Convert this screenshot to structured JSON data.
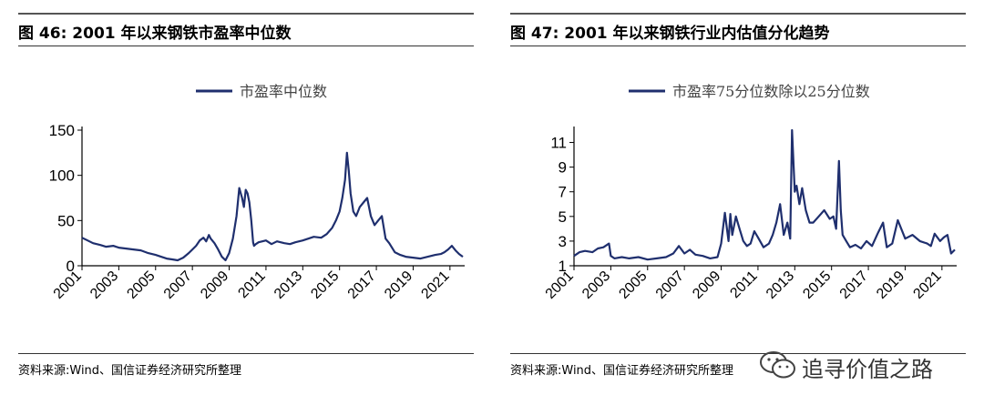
{
  "charts": [
    {
      "figure_title": "图 46:  2001 年以来钢铁市盈率中位数",
      "source": "资料来源:Wind、国信证券经济研究所整理"
    },
    {
      "figure_title": "图 47:  2001 年以来钢铁行业内估值分化趋势",
      "source": "资料来源:Wind、国信证券经济研究所整理"
    }
  ],
  "watermark": {
    "text": "追寻价值之路"
  },
  "colors": {
    "line": "#1f2f6e",
    "axis": "#000000"
  },
  "chart_data": [
    {
      "type": "line",
      "title": "",
      "legend_position": "top-center",
      "grid": false,
      "x_tick_labels": [
        "2001",
        "2003",
        "2005",
        "2007",
        "2009",
        "2011",
        "2013",
        "2015",
        "2017",
        "2019",
        "2021"
      ],
      "xlim": [
        2001,
        2021.8
      ],
      "ylim": [
        0,
        150
      ],
      "y_ticks": [
        0,
        50,
        100,
        150
      ],
      "series": [
        {
          "name": "市盈率中位数",
          "x": [
            2001.0,
            2001.3,
            2001.6,
            2002.0,
            2002.3,
            2002.7,
            2003.0,
            2003.4,
            2003.8,
            2004.2,
            2004.6,
            2005.0,
            2005.3,
            2005.6,
            2005.9,
            2006.2,
            2006.5,
            2006.8,
            2007.0,
            2007.2,
            2007.4,
            2007.6,
            2007.75,
            2007.9,
            2008.0,
            2008.2,
            2008.4,
            2008.6,
            2008.8,
            2009.0,
            2009.2,
            2009.4,
            2009.55,
            2009.7,
            2009.8,
            2009.9,
            2010.0,
            2010.1,
            2010.2,
            2010.3,
            2010.35,
            2010.45,
            2010.6,
            2010.8,
            2011.0,
            2011.3,
            2011.6,
            2012.0,
            2012.3,
            2012.6,
            2013.0,
            2013.3,
            2013.6,
            2014.0,
            2014.3,
            2014.6,
            2014.8,
            2015.0,
            2015.15,
            2015.3,
            2015.4,
            2015.5,
            2015.6,
            2015.75,
            2015.9,
            2016.1,
            2016.3,
            2016.5,
            2016.7,
            2016.9,
            2017.1,
            2017.3,
            2017.5,
            2017.7,
            2018.0,
            2018.3,
            2018.6,
            2019.0,
            2019.4,
            2019.8,
            2020.2,
            2020.5,
            2020.7,
            2020.9,
            2021.1,
            2021.3,
            2021.5,
            2021.7
          ],
          "values": [
            31,
            28,
            25,
            23,
            21,
            22,
            20,
            19,
            18,
            17,
            14,
            12,
            10,
            8,
            7,
            6,
            9,
            14,
            18,
            22,
            28,
            31,
            27,
            34,
            30,
            25,
            18,
            10,
            6,
            14,
            30,
            55,
            86,
            75,
            65,
            84,
            80,
            70,
            50,
            26,
            22,
            24,
            26,
            27,
            28,
            24,
            27,
            25,
            24,
            26,
            28,
            30,
            32,
            31,
            35,
            42,
            50,
            60,
            75,
            95,
            125,
            105,
            80,
            60,
            55,
            65,
            70,
            75,
            55,
            45,
            50,
            55,
            30,
            25,
            15,
            12,
            10,
            9,
            8,
            10,
            12,
            13,
            15,
            18,
            22,
            17,
            13,
            10
          ]
        }
      ]
    },
    {
      "type": "line",
      "title": "",
      "legend_position": "top-center",
      "grid": false,
      "x_tick_labels": [
        "2001",
        "2003",
        "2005",
        "2007",
        "2009",
        "2011",
        "2013",
        "2015",
        "2017",
        "2019",
        "2021"
      ],
      "xlim": [
        2001,
        2021.8
      ],
      "ylim": [
        1,
        12
      ],
      "y_ticks": [
        1,
        3,
        5,
        7,
        9,
        11
      ],
      "series": [
        {
          "name": "市盈率75分位数除以25分位数",
          "x": [
            2001.0,
            2001.3,
            2001.6,
            2002.0,
            2002.3,
            2002.6,
            2002.9,
            2003.0,
            2003.2,
            2003.6,
            2004.0,
            2004.5,
            2005.0,
            2005.5,
            2006.0,
            2006.4,
            2006.7,
            2007.0,
            2007.3,
            2007.6,
            2008.0,
            2008.4,
            2008.8,
            2009.0,
            2009.2,
            2009.4,
            2009.5,
            2009.6,
            2009.8,
            2010.0,
            2010.2,
            2010.4,
            2010.6,
            2010.8,
            2011.0,
            2011.3,
            2011.6,
            2011.8,
            2012.0,
            2012.2,
            2012.4,
            2012.6,
            2012.75,
            2012.85,
            2013.0,
            2013.1,
            2013.25,
            2013.4,
            2013.6,
            2013.8,
            2014.0,
            2014.3,
            2014.6,
            2014.9,
            2015.1,
            2015.25,
            2015.4,
            2015.5,
            2015.6,
            2015.8,
            2016.0,
            2016.3,
            2016.6,
            2016.9,
            2017.2,
            2017.5,
            2017.8,
            2018.0,
            2018.3,
            2018.6,
            2019.0,
            2019.4,
            2019.8,
            2020.2,
            2020.4,
            2020.6,
            2020.9,
            2021.1,
            2021.3,
            2021.5,
            2021.7
          ],
          "values": [
            1.8,
            2.1,
            2.2,
            2.1,
            2.4,
            2.5,
            2.8,
            1.8,
            1.6,
            1.7,
            1.6,
            1.7,
            1.5,
            1.6,
            1.7,
            2.0,
            2.6,
            2.0,
            2.3,
            1.9,
            1.8,
            1.6,
            1.7,
            2.8,
            5.3,
            3.0,
            5.2,
            3.5,
            5.0,
            4.0,
            3.0,
            2.6,
            2.8,
            3.8,
            3.3,
            2.5,
            2.8,
            3.5,
            4.5,
            6.0,
            3.5,
            4.5,
            3.2,
            12.0,
            7.0,
            7.5,
            6.0,
            7.3,
            5.5,
            4.5,
            4.5,
            5.0,
            5.5,
            4.8,
            5.0,
            4.0,
            9.5,
            5.5,
            3.5,
            3.0,
            2.5,
            2.7,
            2.4,
            3.0,
            2.6,
            3.6,
            4.5,
            2.5,
            2.8,
            4.7,
            3.2,
            3.5,
            3.0,
            2.8,
            2.6,
            3.6,
            3.0,
            3.3,
            3.5,
            2.0,
            2.3
          ]
        }
      ]
    }
  ]
}
